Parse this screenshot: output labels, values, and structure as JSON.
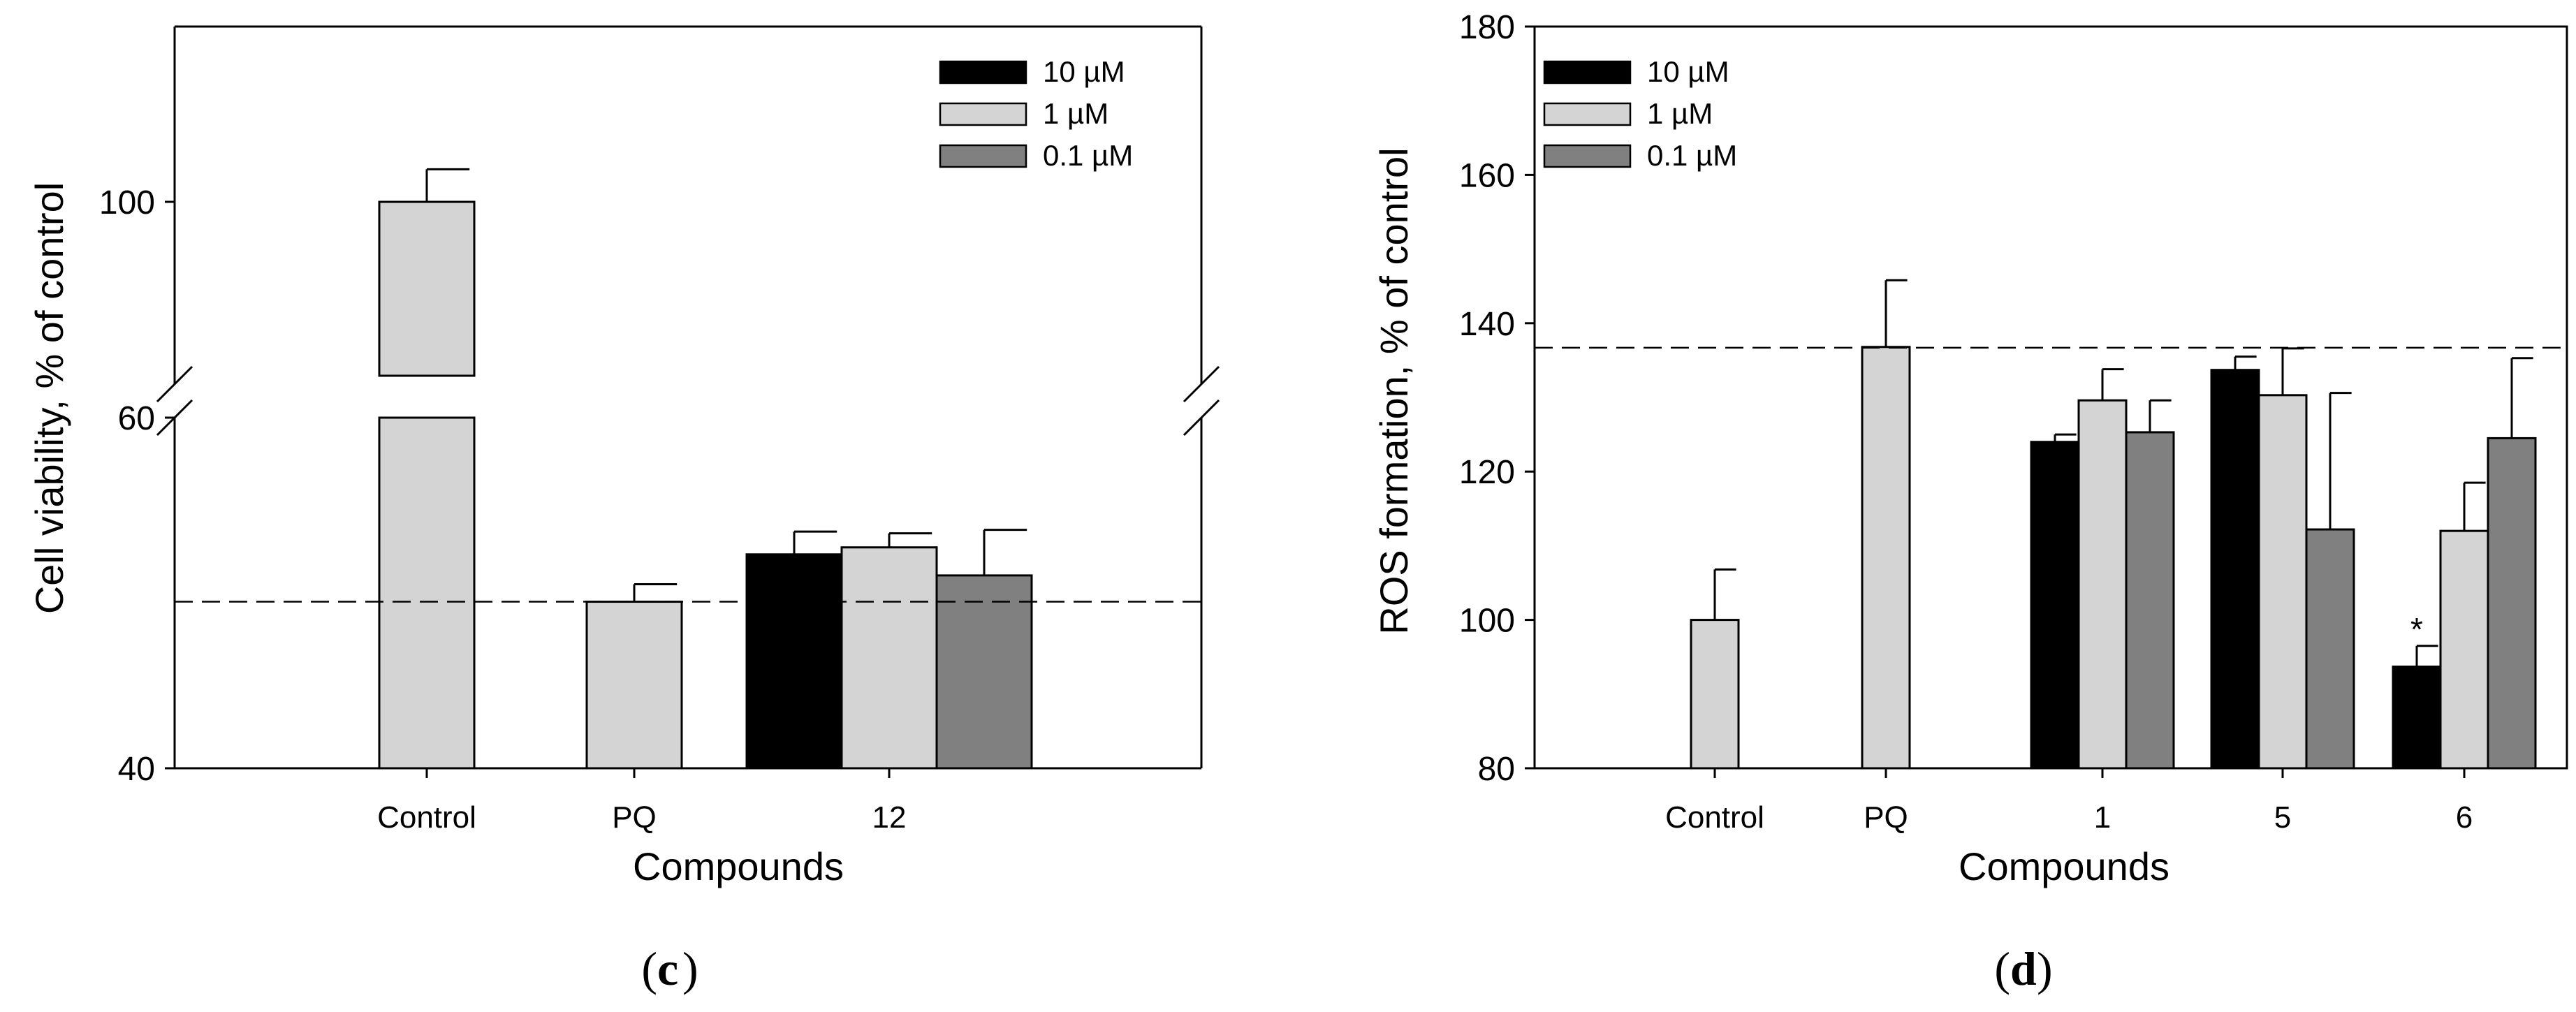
{
  "chart_data": [
    {
      "type": "bar",
      "panel_label": "(c)",
      "panel_letter": "c",
      "xlabel": "Compounds",
      "ylabel": "Cell viability, % of control",
      "categories": [
        "Control",
        "PQ",
        "12"
      ],
      "y_axis_break": {
        "lower_range": [
          40,
          60
        ],
        "upper_range": [
          60,
          100
        ]
      },
      "ylim": [
        40,
        110
      ],
      "yticks": [
        40,
        60,
        100
      ],
      "reference_line": 49.5,
      "series": [
        {
          "name": "10 µM",
          "color": "#000000",
          "values": [
            null,
            null,
            52.2
          ],
          "errors": [
            null,
            null,
            1.3
          ]
        },
        {
          "name": "1 µM",
          "color": "#d4d4d4",
          "values": [
            100,
            49.5,
            52.6
          ],
          "errors": [
            7.5,
            1.0,
            0.8
          ]
        },
        {
          "name": "0.1 µM",
          "color": "#808080",
          "values": [
            null,
            null,
            51.0
          ],
          "errors": [
            null,
            null,
            2.6
          ]
        }
      ],
      "legend_position": "top-right"
    },
    {
      "type": "bar",
      "panel_label": "(d)",
      "panel_letter": "d",
      "xlabel": "Compounds",
      "ylabel": "ROS formation, % of control",
      "categories": [
        "Control",
        "PQ",
        "1",
        "5",
        "6"
      ],
      "ylim": [
        80,
        180
      ],
      "yticks": [
        80,
        100,
        120,
        140,
        160,
        180
      ],
      "reference_line": 136.7,
      "series": [
        {
          "name": "10 µM",
          "color": "#000000",
          "values": [
            null,
            null,
            124.0,
            133.7,
            93.7
          ],
          "errors": [
            null,
            null,
            1.0,
            1.8,
            2.8
          ]
        },
        {
          "name": "1 µM",
          "color": "#d4d4d4",
          "values": [
            100,
            136.8,
            129.6,
            130.3,
            112.0
          ],
          "errors": [
            6.8,
            9.0,
            4.2,
            6.3,
            6.5
          ]
        },
        {
          "name": "0.1 µM",
          "color": "#808080",
          "values": [
            null,
            null,
            125.3,
            112.2,
            124.5
          ],
          "errors": [
            null,
            null,
            4.3,
            18.4,
            10.8
          ]
        }
      ],
      "annotations": [
        {
          "text": "*",
          "category": "6",
          "series": "10 µM"
        }
      ],
      "legend_position": "top-left"
    }
  ]
}
